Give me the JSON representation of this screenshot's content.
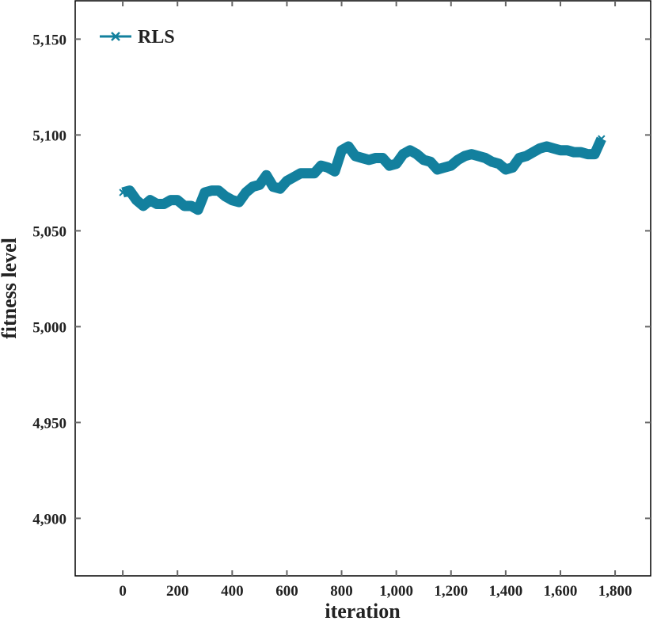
{
  "chart_data": {
    "type": "line",
    "x_label": "iteration",
    "y_label": "fitness level",
    "x": [
      0,
      25,
      50,
      75,
      100,
      125,
      150,
      175,
      200,
      225,
      250,
      275,
      300,
      325,
      350,
      375,
      400,
      425,
      450,
      475,
      500,
      525,
      550,
      575,
      600,
      625,
      650,
      675,
      700,
      725,
      750,
      775,
      800,
      825,
      850,
      875,
      900,
      925,
      950,
      975,
      1000,
      1025,
      1050,
      1075,
      1100,
      1125,
      1150,
      1175,
      1200,
      1225,
      1250,
      1275,
      1300,
      1325,
      1350,
      1375,
      1400,
      1425,
      1450,
      1475,
      1500,
      1525,
      1550,
      1575,
      1600,
      1625,
      1650,
      1675,
      1700,
      1725,
      1750
    ],
    "series": [
      {
        "name": "RLS",
        "color": "#13809e",
        "values": [
          5070,
          5071,
          5066,
          5063,
          5066,
          5064,
          5064,
          5066,
          5066,
          5063,
          5063,
          5061,
          5070,
          5071,
          5071,
          5068,
          5066,
          5065,
          5070,
          5073,
          5074,
          5079,
          5073,
          5072,
          5076,
          5078,
          5080,
          5080,
          5080,
          5084,
          5083,
          5081,
          5092,
          5094,
          5089,
          5088,
          5087,
          5088,
          5088,
          5084,
          5085,
          5090,
          5092,
          5090,
          5087,
          5086,
          5082,
          5083,
          5084,
          5087,
          5089,
          5090,
          5089,
          5088,
          5086,
          5085,
          5082,
          5083,
          5088,
          5089,
          5091,
          5093,
          5094,
          5093,
          5092,
          5092,
          5091,
          5091,
          5090,
          5090,
          5098
        ]
      }
    ],
    "xlim": [
      -174,
      1930
    ],
    "ylim": [
      4870,
      5170
    ],
    "xticks": [
      0,
      200,
      400,
      600,
      800,
      {
        "value": 1000,
        "label": "1,000"
      },
      {
        "value": 1200,
        "label": "1,200"
      },
      {
        "value": 1400,
        "label": "1,400"
      },
      {
        "value": 1600,
        "label": "1,600"
      },
      {
        "value": 1800,
        "label": "1,800"
      }
    ],
    "yticks": [
      {
        "value": 4900,
        "label": "4,900"
      },
      {
        "value": 4950,
        "label": "4,950"
      },
      {
        "value": 5000,
        "label": "5,000"
      },
      {
        "value": 5050,
        "label": "5,050"
      },
      {
        "value": 5100,
        "label": "5,100"
      },
      {
        "value": 5150,
        "label": "5,150"
      }
    ],
    "legend": "upper left"
  }
}
